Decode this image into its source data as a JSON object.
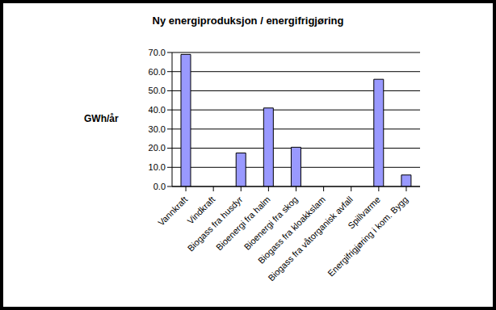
{
  "chart_data": {
    "type": "bar",
    "title": "Ny energiproduksjon / energifrigjøring",
    "y_label": "GWh/år",
    "categories": [
      "Vannkraft",
      "Vindkraft",
      "Biogass fra husdyr",
      "Bioenergi fra halm",
      "Bioenergi fra skog",
      "Biogass fra kloakkslam",
      "Biogass fra våtorganisk avfall",
      "Spillvarme",
      "Energifrigjøring i kom. Bygg"
    ],
    "values": [
      69,
      0,
      17.5,
      41,
      20.5,
      0,
      0,
      56,
      6
    ],
    "color": "#9999ff",
    "ylim": [
      0,
      70
    ],
    "yticks": [
      {
        "value": 0,
        "label": "0.0"
      },
      {
        "value": 10,
        "label": "10.0"
      },
      {
        "value": 20,
        "label": "20.0"
      },
      {
        "value": 30,
        "label": "30.0"
      },
      {
        "value": 40,
        "label": "40.0"
      },
      {
        "value": 50,
        "label": "50.0"
      },
      {
        "value": 60,
        "label": "60.0"
      },
      {
        "value": 70,
        "label": "70.0"
      }
    ],
    "grid": true
  }
}
